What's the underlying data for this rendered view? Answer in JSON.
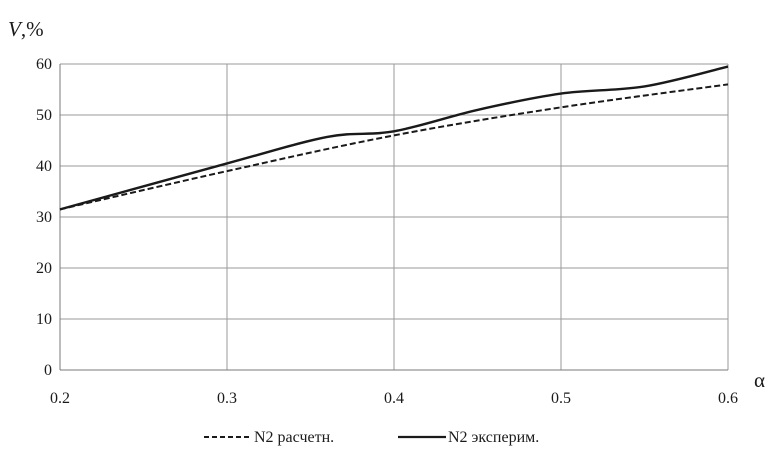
{
  "chart_data": {
    "type": "line",
    "title": "",
    "ylabel_var": "V",
    "ylabel_unit": ",%",
    "xlabel": "α",
    "xlim": [
      0.2,
      0.6
    ],
    "ylim": [
      0,
      60
    ],
    "x_ticks": [
      0.2,
      0.3,
      0.4,
      0.5,
      0.6
    ],
    "x_tick_labels": [
      "0.2",
      "0.3",
      "0.4",
      "0.5",
      "0.6"
    ],
    "y_ticks": [
      0,
      10,
      20,
      30,
      40,
      50,
      60
    ],
    "y_tick_labels": [
      "0",
      "10",
      "20",
      "30",
      "40",
      "50",
      "60"
    ],
    "grid": true,
    "legend_position": "bottom",
    "series": [
      {
        "name": "N2 расчетн.",
        "style": "dashed",
        "color": "#1a1a1a",
        "x": [
          0.2,
          0.3,
          0.4,
          0.5,
          0.6
        ],
        "y": [
          31.5,
          39.0,
          46.0,
          51.5,
          56.0
        ]
      },
      {
        "name": "N2 эксперим.",
        "style": "solid",
        "color": "#1a1a1a",
        "x": [
          0.2,
          0.3,
          0.36,
          0.4,
          0.45,
          0.5,
          0.55,
          0.6
        ],
        "y": [
          31.5,
          40.5,
          45.7,
          46.8,
          51.0,
          54.2,
          55.6,
          59.5
        ]
      }
    ]
  }
}
